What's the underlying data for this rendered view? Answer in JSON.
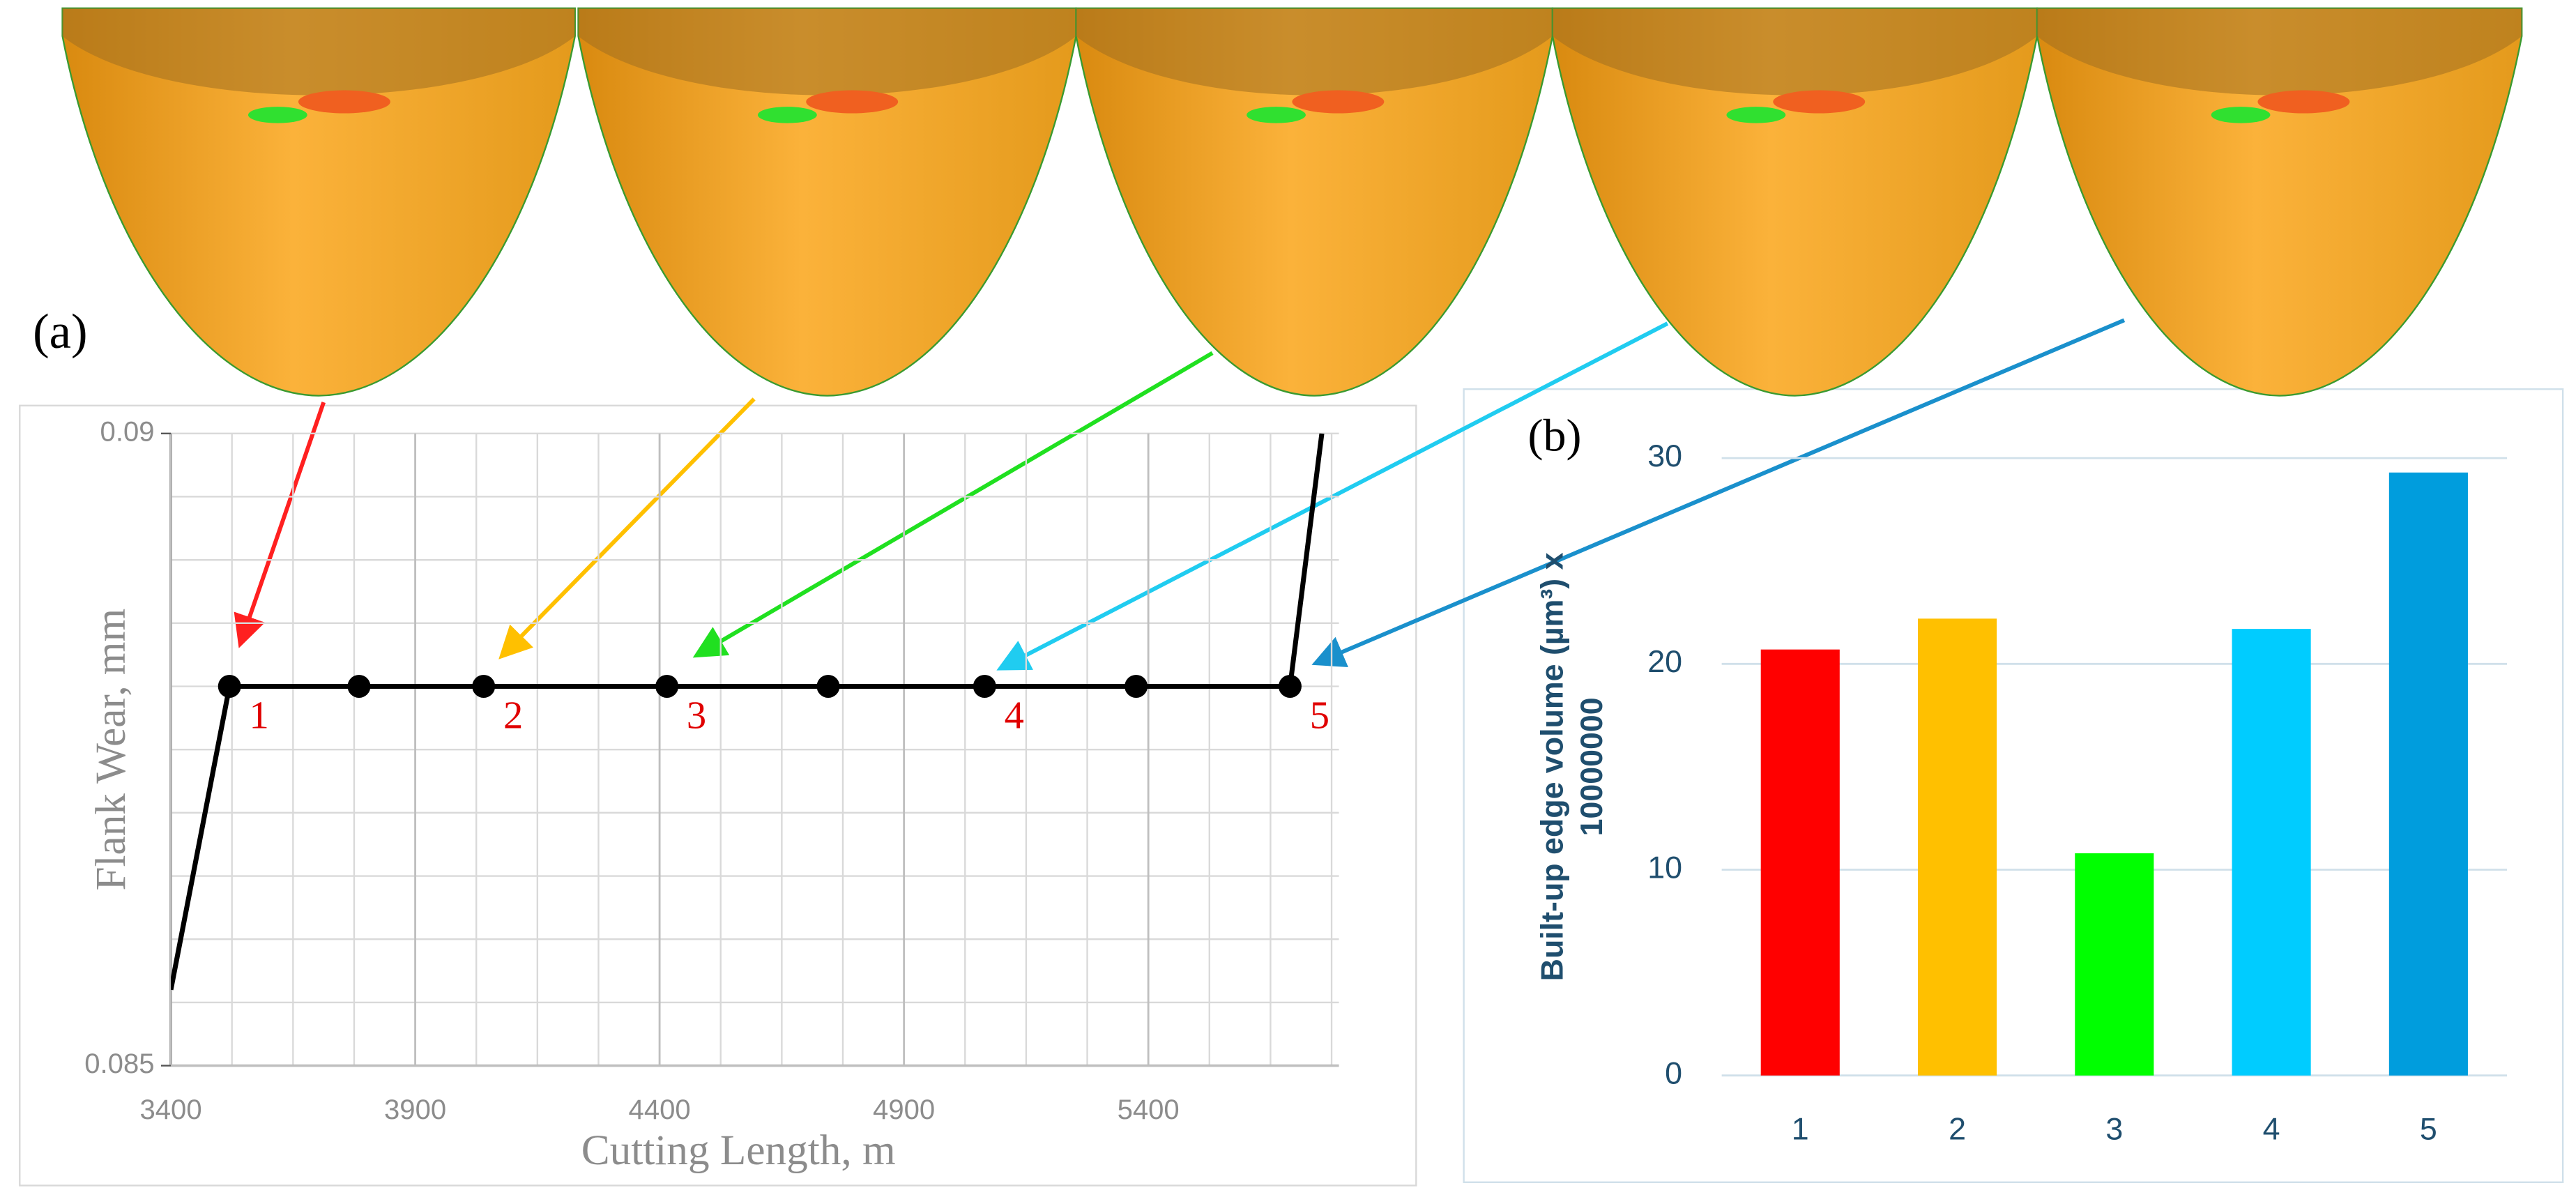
{
  "chart_data": [
    {
      "type": "line",
      "title": "(a)",
      "x_label": "Cutting Length, m",
      "y_label": "Flank Wear, mm",
      "x": [
        3400,
        3520,
        3785,
        4040,
        4415,
        4745,
        5065,
        5375,
        5690,
        5755
      ],
      "values": [
        0.0856,
        0.088,
        0.088,
        0.088,
        0.088,
        0.088,
        0.088,
        0.088,
        0.088,
        0.09
      ],
      "markers": [
        false,
        true,
        true,
        true,
        true,
        true,
        true,
        true,
        true,
        false
      ],
      "color": "#000000",
      "xlim": [
        3400,
        5790
      ],
      "xticks": [
        3400,
        3900,
        4400,
        4900,
        5400
      ],
      "ylim": [
        0.085,
        0.09
      ],
      "yticks": [
        0.085,
        0.09
      ],
      "grid": true,
      "xgrid_step": 125,
      "ygrid_step": 0.0005,
      "annotations": [
        {
          "text": "1",
          "x": 3520,
          "y": 0.088
        },
        {
          "text": "2",
          "x": 4040,
          "y": 0.088
        },
        {
          "text": "3",
          "x": 4415,
          "y": 0.088
        },
        {
          "text": "4",
          "x": 5065,
          "y": 0.088
        },
        {
          "text": "5",
          "x": 5690,
          "y": 0.088
        }
      ],
      "annotation_color": "#e00000"
    },
    {
      "type": "bar",
      "title": "(b)",
      "y_label": "Built-up edge volume (µm³) x 10000000",
      "categories": [
        "1",
        "2",
        "3",
        "4",
        "5"
      ],
      "values": [
        20.7,
        22.2,
        10.8,
        21.7,
        29.3
      ],
      "colors": [
        "#ff0000",
        "#ffc000",
        "#00ff00",
        "#00ccff",
        "#009ddd"
      ],
      "ylim": [
        0,
        30
      ],
      "yticks": [
        0,
        10,
        20,
        30
      ],
      "grid": true
    }
  ]
}
